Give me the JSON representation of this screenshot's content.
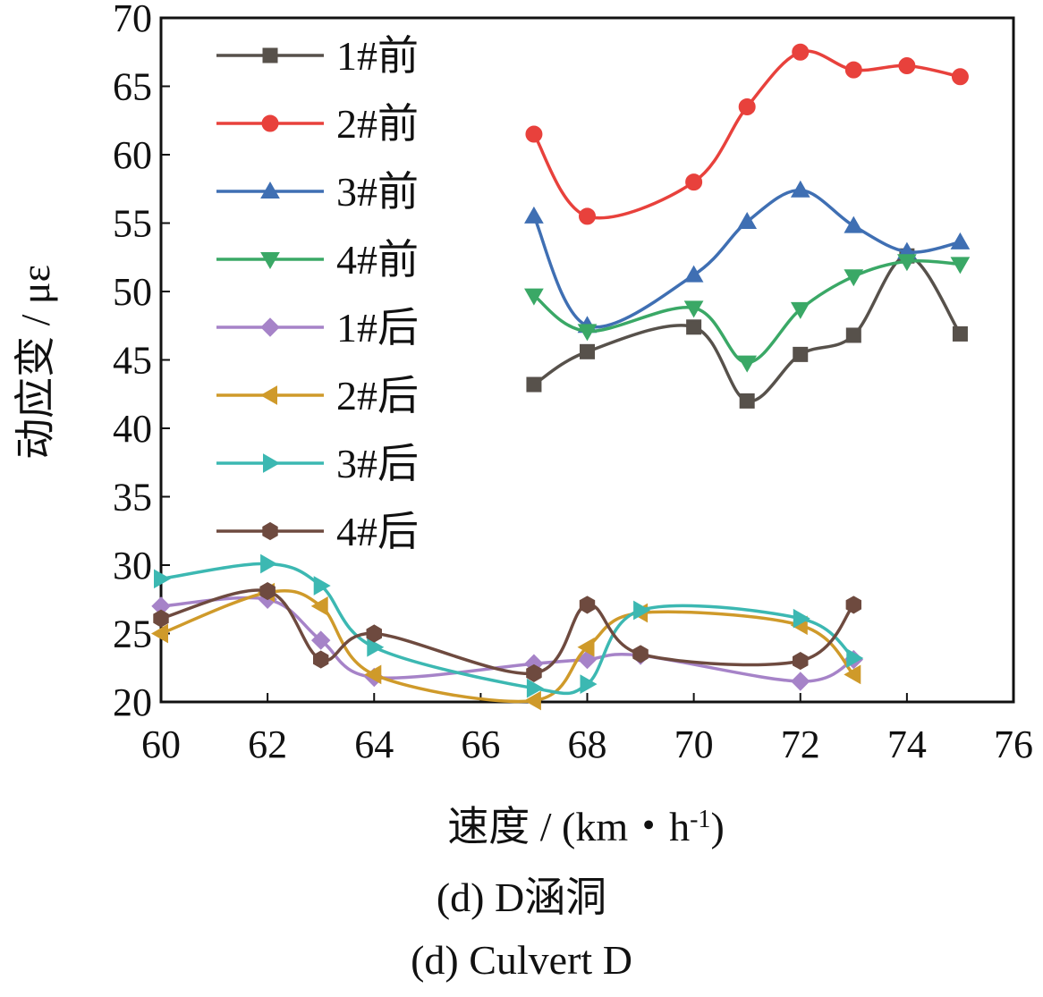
{
  "chart_data": {
    "type": "line",
    "xlabel": "速度 / (km・h",
    "xlabel_sup": "-1",
    "xlabel_close": ")",
    "ylabel": "动应变 / με",
    "xlim": [
      60,
      76
    ],
    "ylim": [
      20,
      70
    ],
    "xticks": [
      "60",
      "62",
      "64",
      "66",
      "68",
      "70",
      "72",
      "74",
      "76"
    ],
    "yticks": [
      "20",
      "25",
      "30",
      "35",
      "40",
      "45",
      "50",
      "55",
      "60",
      "65",
      "70"
    ],
    "grid": false,
    "legend_position": "top-left",
    "series": [
      {
        "name": "1#前",
        "color": "#57514b",
        "marker": "square",
        "x": [
          67,
          68,
          70,
          71,
          72,
          73,
          74,
          75
        ],
        "y": [
          43.2,
          45.6,
          47.4,
          42.0,
          45.4,
          46.8,
          52.6,
          46.9
        ]
      },
      {
        "name": "2#前",
        "color": "#e8413c",
        "marker": "circle",
        "x": [
          67,
          68,
          70,
          71,
          72,
          73,
          74,
          75
        ],
        "y": [
          61.5,
          55.5,
          58.0,
          63.5,
          67.5,
          66.2,
          66.5,
          65.7
        ]
      },
      {
        "name": "3#前",
        "color": "#3f6fb3",
        "marker": "triangle-up",
        "x": [
          67,
          68,
          70,
          71,
          72,
          73,
          74,
          75
        ],
        "y": [
          55.5,
          47.5,
          51.2,
          55.1,
          57.4,
          54.8,
          52.9,
          53.6
        ]
      },
      {
        "name": "4#前",
        "color": "#3aa866",
        "marker": "triangle-down",
        "x": [
          67,
          68,
          70,
          71,
          72,
          73,
          74,
          75
        ],
        "y": [
          49.7,
          47.1,
          48.8,
          44.8,
          48.7,
          51.1,
          52.2,
          52.0
        ]
      },
      {
        "name": "1#后",
        "color": "#a683c8",
        "marker": "diamond",
        "x": [
          60,
          62,
          63,
          64,
          67,
          68,
          69,
          72,
          73
        ],
        "y": [
          27.0,
          27.5,
          24.5,
          21.8,
          22.8,
          23.1,
          23.4,
          21.5,
          23.1
        ]
      },
      {
        "name": "2#后",
        "color": "#cf9a2a",
        "marker": "triangle-left",
        "x": [
          60,
          62,
          63,
          64,
          67,
          68,
          69,
          72,
          73
        ],
        "y": [
          25.0,
          28.0,
          27.0,
          22.0,
          20.1,
          24.0,
          26.5,
          25.6,
          22.0
        ]
      },
      {
        "name": "3#后",
        "color": "#3cb8b2",
        "marker": "triangle-right",
        "x": [
          60,
          62,
          63,
          64,
          67,
          68,
          69,
          72,
          73
        ],
        "y": [
          29.0,
          30.1,
          28.5,
          24.0,
          21.0,
          21.3,
          26.7,
          26.1,
          23.2
        ]
      },
      {
        "name": "4#后",
        "color": "#6e4a3f",
        "marker": "hexagon",
        "x": [
          60,
          62,
          63,
          64,
          67,
          68,
          69,
          72,
          73
        ],
        "y": [
          26.1,
          28.1,
          23.1,
          25.0,
          22.1,
          27.1,
          23.5,
          23.0,
          27.1
        ]
      }
    ]
  },
  "caption": {
    "cn": "(d)  D涵洞",
    "en": "(d)  Culvert D"
  }
}
